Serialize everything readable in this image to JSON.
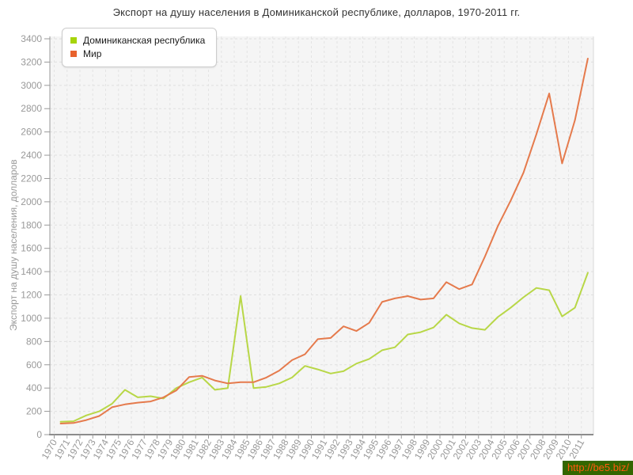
{
  "title": "Экспорт на душу населения в Доминиканской республике, долларов, 1970-2011 гг.",
  "watermark": "http://be5.biz/",
  "axis": {
    "y_label": "Экспорт на душу населения, долларов"
  },
  "legend": [
    {
      "label": "Доминиканская республика",
      "color": "#a6d40a"
    },
    {
      "label": "Мир",
      "color": "#e8622d"
    }
  ],
  "colors": {
    "dominican_line": "#b8d747",
    "world_line": "#e57a4c",
    "plot_bg": "#f5f5f5",
    "grid": "#e0e0e0",
    "axis": "#999999",
    "tick_text": "#999999",
    "title_text": "#333333",
    "watermark_bg": "#336600",
    "watermark_text": "#ff5a0f"
  },
  "chart_data": {
    "type": "line",
    "title": "Экспорт на душу населения в Доминиканской республике, долларов, 1970-2011 гг.",
    "xlabel": "",
    "ylabel": "Экспорт на душу населения, долларов",
    "ylim": [
      0,
      3400
    ],
    "ytick_step": 200,
    "grid": true,
    "legend_position": "top-left",
    "x": [
      1970,
      1971,
      1972,
      1973,
      1974,
      1975,
      1976,
      1977,
      1978,
      1979,
      1980,
      1981,
      1982,
      1983,
      1984,
      1985,
      1986,
      1987,
      1988,
      1989,
      1990,
      1991,
      1992,
      1993,
      1994,
      1995,
      1996,
      1997,
      1998,
      1999,
      2000,
      2001,
      2002,
      2003,
      2004,
      2005,
      2006,
      2007,
      2008,
      2009,
      2010,
      2011
    ],
    "series": [
      {
        "name": "Доминиканская республика",
        "color": "#b8d747",
        "values": [
          110,
          115,
          165,
          200,
          265,
          385,
          320,
          330,
          310,
          400,
          450,
          490,
          385,
          400,
          1190,
          400,
          410,
          440,
          490,
          590,
          560,
          525,
          545,
          610,
          650,
          725,
          750,
          860,
          880,
          920,
          1030,
          955,
          915,
          900,
          1010,
          1090,
          1180,
          1260,
          1240,
          1015,
          1090,
          1390
        ]
      },
      {
        "name": "Мир",
        "color": "#e57a4c",
        "values": [
          95,
          100,
          125,
          160,
          235,
          260,
          275,
          285,
          320,
          380,
          495,
          505,
          465,
          440,
          450,
          450,
          490,
          550,
          640,
          690,
          820,
          830,
          930,
          890,
          960,
          1140,
          1170,
          1190,
          1160,
          1170,
          1310,
          1250,
          1290,
          1530,
          1790,
          2010,
          2250,
          2580,
          2930,
          2330,
          2700,
          3230
        ]
      }
    ]
  }
}
